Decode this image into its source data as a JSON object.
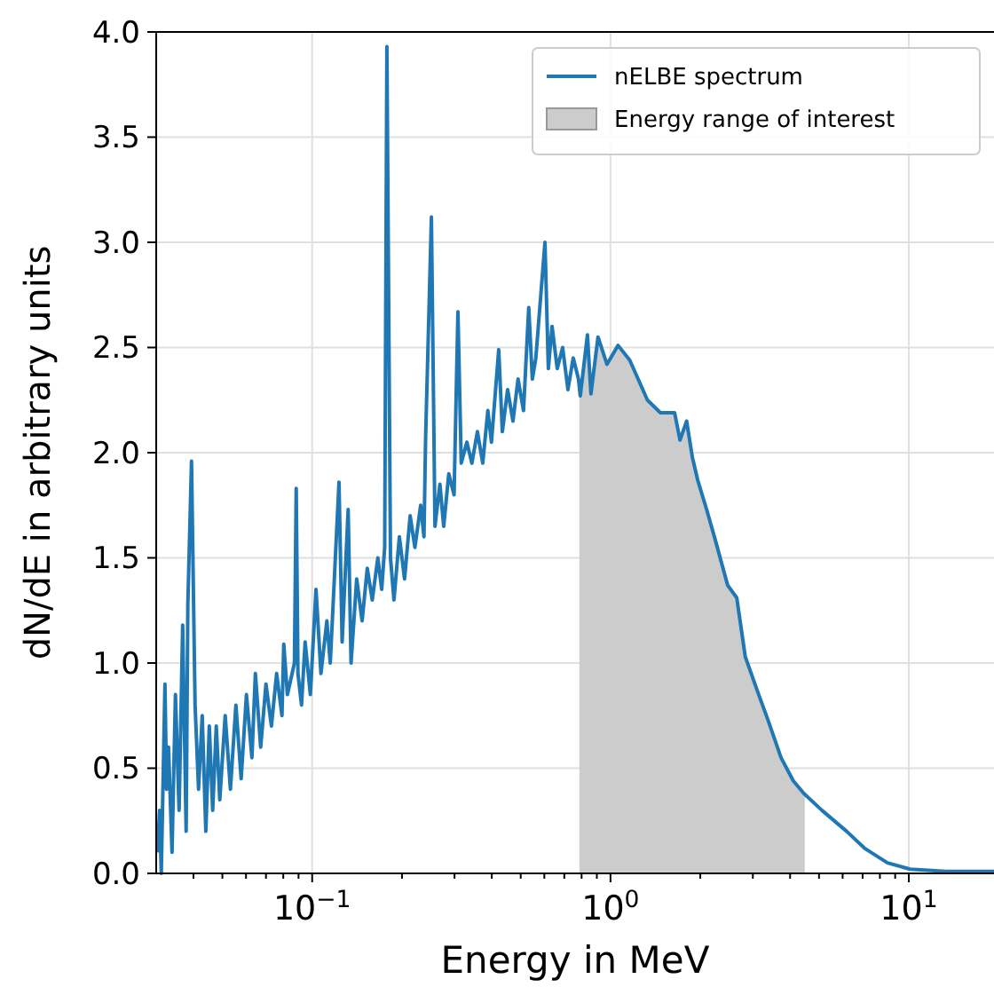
{
  "chart_data": {
    "type": "line",
    "xlabel": "Energy in MeV",
    "ylabel": "dN/dE in arbitrary units",
    "log": "x",
    "grid": true,
    "legend": "top right",
    "xlim": [
      0.03,
      19.3
    ],
    "ylim": [
      0,
      4
    ],
    "xticks": [
      {
        "value": 0.04,
        "label": null
      },
      {
        "value": 0.05,
        "label": null
      },
      {
        "value": 0.06,
        "label": null
      },
      {
        "value": 0.07,
        "label": null
      },
      {
        "value": 0.08,
        "label": null
      },
      {
        "value": 0.09,
        "label": null
      },
      {
        "value": 0.1,
        "label": "10$^{−1}$"
      },
      {
        "value": 0.2,
        "label": null
      },
      {
        "value": 0.3,
        "label": null
      },
      {
        "value": 0.4,
        "label": null
      },
      {
        "value": 0.5,
        "label": null
      },
      {
        "value": 0.6,
        "label": null
      },
      {
        "value": 0.7,
        "label": null
      },
      {
        "value": 0.8,
        "label": null
      },
      {
        "value": 0.9,
        "label": null
      },
      {
        "value": 1,
        "label": "10$^{0}$"
      },
      {
        "value": 2,
        "label": null
      },
      {
        "value": 3,
        "label": null
      },
      {
        "value": 4,
        "label": null
      },
      {
        "value": 5,
        "label": null
      },
      {
        "value": 6,
        "label": null
      },
      {
        "value": 7,
        "label": null
      },
      {
        "value": 8,
        "label": null
      },
      {
        "value": 9,
        "label": null
      },
      {
        "value": 10,
        "label": "10$^{1}$"
      }
    ],
    "yticks": [
      {
        "value": 0,
        "label": "0.0"
      },
      {
        "value": 0.5,
        "label": "0.5"
      },
      {
        "value": 1,
        "label": "1.0"
      },
      {
        "value": 1.5,
        "label": "1.5"
      },
      {
        "value": 2,
        "label": "2.0"
      },
      {
        "value": 2.5,
        "label": "2.5"
      },
      {
        "value": 3,
        "label": "3.0"
      },
      {
        "value": 3.5,
        "label": "3.5"
      },
      {
        "value": 4,
        "label": "4.0"
      }
    ],
    "series": [
      {
        "name": "nELBE spectrum",
        "color": "#1f77b4",
        "x": [
          0.0303,
          0.0308,
          0.0312,
          0.0321,
          0.0325,
          0.033,
          0.0339,
          0.0348,
          0.0358,
          0.0368,
          0.0378,
          0.0383,
          0.0394,
          0.0405,
          0.0416,
          0.0428,
          0.044,
          0.0452,
          0.0464,
          0.0477,
          0.049,
          0.0511,
          0.0532,
          0.0555,
          0.0578,
          0.0602,
          0.0628,
          0.0645,
          0.0672,
          0.07,
          0.073,
          0.076,
          0.0792,
          0.0803,
          0.0826,
          0.0872,
          0.0884,
          0.0896,
          0.0921,
          0.0947,
          0.0986,
          0.103,
          0.107,
          0.112,
          0.115,
          0.123,
          0.126,
          0.132,
          0.135,
          0.141,
          0.147,
          0.153,
          0.159,
          0.166,
          0.171,
          0.175,
          0.178,
          0.183,
          0.188,
          0.196,
          0.204,
          0.213,
          0.221,
          0.231,
          0.237,
          0.24,
          0.251,
          0.258,
          0.268,
          0.276,
          0.287,
          0.299,
          0.308,
          0.316,
          0.33,
          0.343,
          0.358,
          0.373,
          0.388,
          0.399,
          0.422,
          0.434,
          0.452,
          0.471,
          0.49,
          0.511,
          0.532,
          0.547,
          0.562,
          0.603,
          0.619,
          0.637,
          0.663,
          0.691,
          0.72,
          0.75,
          0.781,
          0.792,
          0.837,
          0.86,
          0.908,
          0.973,
          1.06,
          1.16,
          1.33,
          1.47,
          1.64,
          1.71,
          1.8,
          1.88,
          1.96,
          2.1,
          2.24,
          2.47,
          2.65,
          2.83,
          3.12,
          3.39,
          3.73,
          4.1,
          4.45,
          5.11,
          6.19,
          7.1,
          8.48,
          10.1,
          13.3,
          19.3
        ],
        "values": [
          0.1,
          0.3,
          0.0,
          0.9,
          0.4,
          0.6,
          0.1,
          0.85,
          0.3,
          1.18,
          0.2,
          1.28,
          1.96,
          0.8,
          0.4,
          0.75,
          0.2,
          0.7,
          0.3,
          0.7,
          0.35,
          0.75,
          0.4,
          0.8,
          0.45,
          0.85,
          0.55,
          0.95,
          0.6,
          0.9,
          0.7,
          0.95,
          0.75,
          1.09,
          0.85,
          1.0,
          1.83,
          0.95,
          0.8,
          1.1,
          0.85,
          1.35,
          0.95,
          1.2,
          1.0,
          1.86,
          1.1,
          1.73,
          1.0,
          1.4,
          1.2,
          1.45,
          1.3,
          1.5,
          1.35,
          1.55,
          3.93,
          1.5,
          1.3,
          1.6,
          1.4,
          1.7,
          1.55,
          1.75,
          1.6,
          2.07,
          3.12,
          1.65,
          1.85,
          1.65,
          1.9,
          1.8,
          2.67,
          1.95,
          2.05,
          1.95,
          2.1,
          1.95,
          2.2,
          2.05,
          2.49,
          2.1,
          2.3,
          2.15,
          2.35,
          2.2,
          2.69,
          2.35,
          2.45,
          3.0,
          2.4,
          2.6,
          2.4,
          2.5,
          2.3,
          2.45,
          2.35,
          2.27,
          2.56,
          2.28,
          2.55,
          2.42,
          2.51,
          2.44,
          2.25,
          2.19,
          2.19,
          2.06,
          2.15,
          1.98,
          1.87,
          1.73,
          1.59,
          1.37,
          1.31,
          1.03,
          0.86,
          0.72,
          0.55,
          0.44,
          0.38,
          0.3,
          0.2,
          0.12,
          0.05,
          0.02,
          0.01,
          0.01
        ]
      },
      {
        "name": "Energy range of interest",
        "type": "area",
        "color": "#cccccc",
        "x": [
          0.792,
          0.837,
          0.86,
          0.908,
          0.973,
          1.06,
          1.16,
          1.33,
          1.47,
          1.64,
          1.71,
          1.8,
          1.88,
          1.96,
          2.1,
          2.24,
          2.47,
          2.65,
          2.83,
          3.12,
          3.39,
          3.73,
          4.1,
          4.45
        ],
        "values": [
          2.27,
          2.56,
          2.28,
          2.55,
          2.42,
          2.51,
          2.44,
          2.25,
          2.19,
          2.19,
          2.06,
          2.15,
          1.98,
          1.87,
          1.73,
          1.59,
          1.37,
          1.31,
          1.03,
          0.86,
          0.72,
          0.55,
          0.44,
          0.38
        ]
      }
    ]
  }
}
